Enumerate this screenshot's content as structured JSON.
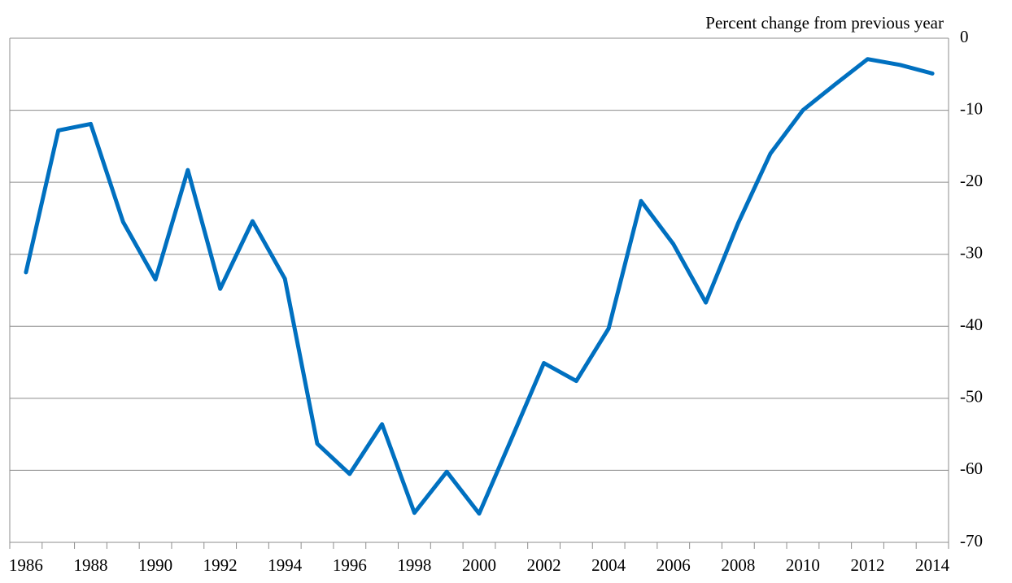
{
  "chart_data": {
    "type": "line",
    "y_label": "Percent change from previous year",
    "categories": [
      "1986",
      null,
      "1988",
      null,
      "1990",
      null,
      "1992",
      null,
      "1994",
      null,
      "1996",
      null,
      "1998",
      null,
      "2000",
      null,
      "2002",
      null,
      "2004",
      null,
      "2006",
      null,
      "2008",
      null,
      "2010",
      null,
      "2012",
      null,
      "2014"
    ],
    "values": [
      -32.5,
      -12.8,
      -11.9,
      -25.5,
      -33.5,
      -18.3,
      -34.8,
      -25.4,
      -33.4,
      -56.3,
      -60.5,
      -53.6,
      -65.9,
      -60.2,
      -66.0,
      -55.6,
      -45.1,
      -47.6,
      -40.3,
      -22.6,
      -28.6,
      -36.7,
      -25.7,
      -16.0,
      -10.0,
      -6.4,
      -2.9,
      -3.7,
      -4.9
    ],
    "color": "#0070c0",
    "ylim": [
      -70,
      0
    ],
    "yticks": [
      0,
      -10,
      -20,
      -30,
      -40,
      -50,
      -60,
      -70
    ],
    "y_axis_side": "right",
    "grid": true
  }
}
